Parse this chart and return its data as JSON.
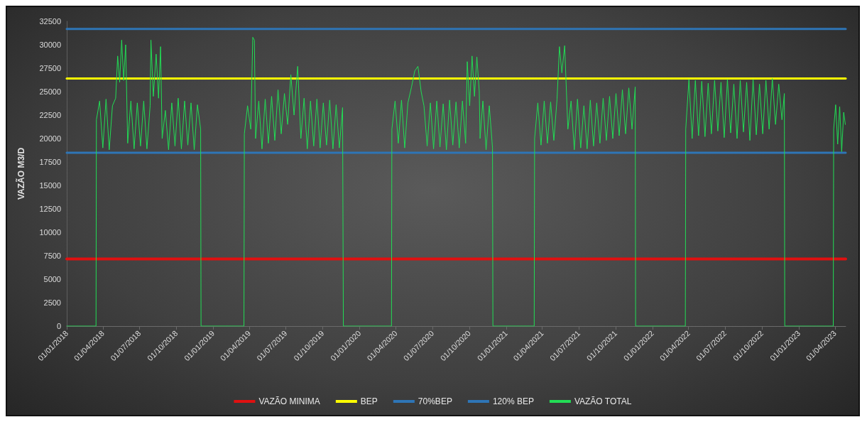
{
  "chart_data": {
    "type": "line",
    "ylabel": "VAZÃO M3/D",
    "xlim": [
      "2018-01-01",
      "2023-04-28"
    ],
    "xticks": [
      {
        "value": "2018-01-01",
        "label": "01/01/2018"
      },
      {
        "value": "2018-04-01",
        "label": "01/04/2018"
      },
      {
        "value": "2018-07-01",
        "label": "01/07/2018"
      },
      {
        "value": "2018-10-01",
        "label": "01/10/2018"
      },
      {
        "value": "2019-01-01",
        "label": "01/01/2019"
      },
      {
        "value": "2019-04-01",
        "label": "01/04/2019"
      },
      {
        "value": "2019-07-01",
        "label": "01/07/2019"
      },
      {
        "value": "2019-10-01",
        "label": "01/10/2019"
      },
      {
        "value": "2020-01-01",
        "label": "01/01/2020"
      },
      {
        "value": "2020-04-01",
        "label": "01/04/2020"
      },
      {
        "value": "2020-07-01",
        "label": "01/07/2020"
      },
      {
        "value": "2020-10-01",
        "label": "01/10/2020"
      },
      {
        "value": "2021-01-01",
        "label": "01/01/2021"
      },
      {
        "value": "2021-04-01",
        "label": "01/04/2021"
      },
      {
        "value": "2021-07-01",
        "label": "01/07/2021"
      },
      {
        "value": "2021-10-01",
        "label": "01/10/2021"
      },
      {
        "value": "2022-01-01",
        "label": "01/01/2022"
      },
      {
        "value": "2022-04-01",
        "label": "01/04/2022"
      },
      {
        "value": "2022-07-01",
        "label": "01/07/2022"
      },
      {
        "value": "2022-10-01",
        "label": "01/10/2022"
      },
      {
        "value": "2023-01-01",
        "label": "01/01/2023"
      },
      {
        "value": "2023-04-01",
        "label": "01/04/2023"
      }
    ],
    "ylim": [
      0,
      32500
    ],
    "yticks": [
      0,
      2500,
      5000,
      7500,
      10000,
      12500,
      15000,
      17500,
      20000,
      22500,
      25000,
      27500,
      30000,
      32500
    ],
    "legend": "bottom",
    "line_style": "solid",
    "marker": "none",
    "series": [
      {
        "name": "VAZÃO MINIMA",
        "color": "#e01010",
        "x": [
          "2018-01-01",
          "2023-04-28"
        ],
        "values": [
          7150,
          7150
        ]
      },
      {
        "name": "BEP",
        "color": "#ffff00",
        "x": [
          "2018-01-01",
          "2023-04-28"
        ],
        "values": [
          26400,
          26400
        ]
      },
      {
        "name": "70%BEP",
        "color": "#2e75b6",
        "x": [
          "2018-01-01",
          "2023-04-28"
        ],
        "values": [
          18480,
          18480
        ]
      },
      {
        "name": "120% BEP",
        "color": "#2e75b6",
        "x": [
          "2018-01-01",
          "2023-04-28"
        ],
        "values": [
          31680,
          31680
        ]
      },
      {
        "name": "VAZÃO TOTAL",
        "color": "#22dd55",
        "x": [
          "2018-01-01",
          "2018-03-15",
          "2018-03-16",
          "2018-03-24",
          "2018-04-01",
          "2018-04-09",
          "2018-04-17",
          "2018-04-25",
          "2018-05-03",
          "2018-05-08",
          "2018-05-13",
          "2018-05-18",
          "2018-05-23",
          "2018-05-28",
          "2018-06-02",
          "2018-06-10",
          "2018-06-18",
          "2018-06-26",
          "2018-07-04",
          "2018-07-12",
          "2018-07-20",
          "2018-07-28",
          "2018-07-30",
          "2018-08-05",
          "2018-08-12",
          "2018-08-18",
          "2018-08-23",
          "2018-08-27",
          "2018-09-04",
          "2018-09-12",
          "2018-09-20",
          "2018-09-28",
          "2018-10-06",
          "2018-10-14",
          "2018-10-22",
          "2018-10-30",
          "2018-11-07",
          "2018-11-15",
          "2018-11-23",
          "2018-12-01",
          "2018-12-02",
          "2019-03-19",
          "2019-03-20",
          "2019-03-28",
          "2019-04-05",
          "2019-04-10",
          "2019-04-14",
          "2019-04-17",
          "2019-04-25",
          "2019-05-03",
          "2019-05-11",
          "2019-05-19",
          "2019-05-27",
          "2019-06-04",
          "2019-06-12",
          "2019-06-20",
          "2019-06-28",
          "2019-07-06",
          "2019-07-14",
          "2019-07-22",
          "2019-07-31",
          "2019-08-08",
          "2019-08-16",
          "2019-08-24",
          "2019-09-01",
          "2019-09-09",
          "2019-09-17",
          "2019-09-25",
          "2019-10-03",
          "2019-10-11",
          "2019-10-19",
          "2019-10-27",
          "2019-11-04",
          "2019-11-12",
          "2019-11-20",
          "2019-11-22",
          "2020-03-21",
          "2020-03-22",
          "2020-03-30",
          "2020-04-07",
          "2020-04-15",
          "2020-04-23",
          "2020-05-01",
          "2020-05-10",
          "2020-05-18",
          "2020-05-26",
          "2020-06-03",
          "2020-06-10",
          "2020-06-18",
          "2020-06-26",
          "2020-07-04",
          "2020-07-12",
          "2020-07-20",
          "2020-07-28",
          "2020-08-05",
          "2020-08-13",
          "2020-08-21",
          "2020-08-29",
          "2020-09-06",
          "2020-09-14",
          "2020-09-22",
          "2020-09-26",
          "2020-10-02",
          "2020-10-08",
          "2020-10-14",
          "2020-10-20",
          "2020-10-26",
          "2020-10-28",
          "2020-11-04",
          "2020-11-12",
          "2020-11-20",
          "2020-11-28",
          "2020-11-29",
          "2021-03-12",
          "2021-03-13",
          "2021-03-21",
          "2021-03-29",
          "2021-04-06",
          "2021-04-14",
          "2021-04-22",
          "2021-04-30",
          "2021-05-08",
          "2021-05-14",
          "2021-05-20",
          "2021-05-27",
          "2021-06-04",
          "2021-06-12",
          "2021-06-20",
          "2021-06-28",
          "2021-07-06",
          "2021-07-14",
          "2021-07-22",
          "2021-07-30",
          "2021-08-07",
          "2021-08-15",
          "2021-08-23",
          "2021-08-31",
          "2021-09-08",
          "2021-09-16",
          "2021-09-24",
          "2021-10-02",
          "2021-10-10",
          "2021-10-18",
          "2021-10-26",
          "2021-11-03",
          "2021-11-11",
          "2021-11-19",
          "2021-11-20",
          "2022-03-24",
          "2022-03-25",
          "2022-04-02",
          "2022-04-10",
          "2022-04-18",
          "2022-04-26",
          "2022-05-04",
          "2022-05-12",
          "2022-05-20",
          "2022-05-28",
          "2022-06-05",
          "2022-06-13",
          "2022-06-21",
          "2022-06-29",
          "2022-07-07",
          "2022-07-15",
          "2022-07-23",
          "2022-07-31",
          "2022-08-08",
          "2022-08-16",
          "2022-08-24",
          "2022-09-01",
          "2022-09-09",
          "2022-09-17",
          "2022-09-25",
          "2022-10-03",
          "2022-10-11",
          "2022-10-19",
          "2022-10-27",
          "2022-11-04",
          "2022-11-12",
          "2022-11-20",
          "2022-11-26",
          "2022-11-27",
          "2023-03-28",
          "2023-03-29",
          "2023-04-03",
          "2023-04-08",
          "2023-04-13",
          "2023-04-18",
          "2023-04-23",
          "2023-04-27"
        ],
        "values": [
          0,
          0,
          22000,
          24000,
          19000,
          24200,
          18800,
          23500,
          24300,
          28800,
          26000,
          30500,
          26200,
          30000,
          19500,
          24000,
          18900,
          23800,
          19200,
          24000,
          18900,
          23500,
          30500,
          24500,
          29000,
          24300,
          29800,
          20000,
          23000,
          18800,
          23800,
          19200,
          24300,
          18900,
          24000,
          19300,
          23800,
          18800,
          23600,
          21000,
          0,
          0,
          20500,
          23500,
          21000,
          30800,
          30500,
          20000,
          24000,
          18900,
          24200,
          19500,
          24500,
          19800,
          25200,
          20500,
          24800,
          21500,
          26800,
          22500,
          27700,
          20000,
          24300,
          18900,
          24000,
          19200,
          24200,
          19000,
          23800,
          19300,
          24100,
          18900,
          23600,
          19000,
          23300,
          0,
          0,
          21000,
          24000,
          19500,
          24100,
          19000,
          23800,
          25500,
          27200,
          27700,
          25000,
          23500,
          19200,
          23800,
          18900,
          24000,
          19100,
          23700,
          18800,
          24100,
          19300,
          23900,
          19000,
          24000,
          19500,
          28200,
          23500,
          28800,
          24500,
          28700,
          25000,
          20000,
          24000,
          18800,
          23500,
          19000,
          0,
          0,
          20000,
          23800,
          19300,
          24000,
          19500,
          23900,
          19800,
          24200,
          29800,
          27000,
          29900,
          21000,
          24000,
          18800,
          24200,
          19000,
          23500,
          18900,
          24100,
          19200,
          23800,
          19500,
          24300,
          19800,
          24500,
          20000,
          24800,
          20300,
          25200,
          20500,
          25400,
          21000,
          25500,
          0,
          0,
          21000,
          26300,
          20000,
          26200,
          20300,
          26100,
          20200,
          25900,
          20500,
          26200,
          20800,
          26000,
          20100,
          26300,
          20600,
          25800,
          20000,
          26200,
          20700,
          26000,
          19800,
          26300,
          20400,
          25800,
          20500,
          26200,
          21000,
          26400,
          21500,
          25800,
          22000,
          24800,
          0,
          0,
          21000,
          23600,
          19400,
          23400,
          18600,
          22800,
          21500
        ]
      }
    ]
  }
}
